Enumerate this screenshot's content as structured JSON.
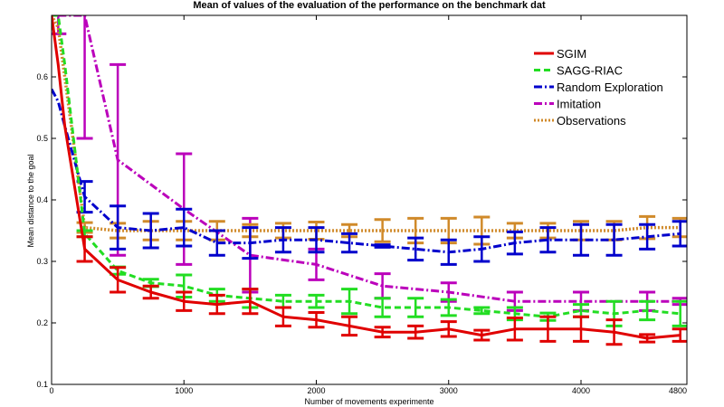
{
  "chart_data": {
    "type": "line",
    "title": "Mean of values of the evaluation of the performance on the benchmark dat",
    "xlabel": "Number of movements experimente",
    "ylabel": "Mean distance to the goal",
    "xlim": [
      0,
      4800
    ],
    "ylim": [
      0.1,
      0.7
    ],
    "xticks": [
      0,
      1000,
      2000,
      3000,
      4000,
      4800
    ],
    "xtick_labels": [
      "0",
      "1000",
      "2000",
      "3000",
      "4000",
      "4800"
    ],
    "yticks": [
      0.1,
      0.2,
      0.3,
      0.4,
      0.5,
      0.6
    ],
    "ytick_labels": [
      "0.1",
      "0.2",
      "0.3",
      "0.4",
      "0.5",
      "0.6"
    ],
    "grid": false,
    "legend_position": "top-right",
    "series": [
      {
        "name": "SGIM",
        "color": "#e00000",
        "dash": "solid",
        "x": [
          0,
          50,
          100,
          250,
          500,
          750,
          1000,
          1250,
          1500,
          1750,
          2000,
          2250,
          2500,
          2750,
          3000,
          3250,
          3500,
          3750,
          4000,
          4250,
          4500,
          4750
        ],
        "y": [
          0.7,
          0.62,
          0.52,
          0.32,
          0.27,
          0.25,
          0.235,
          0.23,
          0.235,
          0.21,
          0.205,
          0.195,
          0.185,
          0.185,
          0.19,
          0.18,
          0.19,
          0.19,
          0.19,
          0.185,
          0.175,
          0.18
        ],
        "err": [
          0,
          0,
          0,
          0.02,
          0.02,
          0.01,
          0.015,
          0.015,
          0.02,
          0.015,
          0.012,
          0.015,
          0.008,
          0.01,
          0.012,
          0.008,
          0.018,
          0.02,
          0.02,
          0.02,
          0.006,
          0.01
        ]
      },
      {
        "name": "SAGG-RIAC",
        "color": "#22dd22",
        "dash": "dashed",
        "x": [
          0,
          50,
          100,
          250,
          500,
          750,
          1000,
          1250,
          1500,
          1750,
          2000,
          2250,
          2500,
          2750,
          3000,
          3250,
          3500,
          3750,
          4000,
          4250,
          4500,
          4750
        ],
        "y": [
          0.7,
          0.7,
          0.62,
          0.345,
          0.285,
          0.265,
          0.26,
          0.245,
          0.24,
          0.235,
          0.235,
          0.235,
          0.225,
          0.225,
          0.225,
          0.22,
          0.215,
          0.21,
          0.22,
          0.215,
          0.22,
          0.215
        ],
        "err": [
          0,
          0,
          0,
          0.005,
          0.006,
          0.006,
          0.018,
          0.01,
          0.015,
          0.01,
          0.01,
          0.02,
          0.015,
          0.015,
          0.013,
          0.005,
          0.01,
          0.006,
          0.01,
          0.02,
          0.015,
          0.02
        ]
      },
      {
        "name": "Random Exploration",
        "color": "#0000cc",
        "dash": "dashdot",
        "x": [
          0,
          50,
          100,
          250,
          500,
          750,
          1000,
          1250,
          1500,
          1750,
          2000,
          2250,
          2500,
          2750,
          3000,
          3250,
          3500,
          3750,
          4000,
          4250,
          4500,
          4750
        ],
        "y": [
          0.58,
          0.56,
          0.52,
          0.405,
          0.355,
          0.35,
          0.355,
          0.33,
          0.33,
          0.335,
          0.335,
          0.33,
          0.325,
          0.32,
          0.315,
          0.32,
          0.33,
          0.335,
          0.335,
          0.335,
          0.34,
          0.345
        ],
        "err": [
          0,
          0,
          0,
          0.025,
          0.035,
          0.028,
          0.03,
          0.02,
          0.025,
          0.02,
          0.02,
          0.015,
          0.002,
          0.018,
          0.02,
          0.02,
          0.018,
          0.02,
          0.025,
          0.025,
          0.02,
          0.02
        ]
      },
      {
        "name": "Imitation",
        "color": "#bb00bb",
        "dash": "dashdot",
        "x": [
          50,
          250,
          500,
          1000,
          1500,
          2000,
          2500,
          3000,
          3500,
          4000,
          4500,
          4750
        ],
        "y": [
          0.7,
          0.7,
          0.465,
          0.385,
          0.31,
          0.295,
          0.26,
          0.25,
          0.235,
          0.235,
          0.235,
          0.235
        ],
        "err": [
          0.03,
          0.2,
          0.155,
          0.09,
          0.06,
          0.025,
          0.02,
          0.015,
          0.015,
          0.015,
          0.015,
          0.005
        ]
      },
      {
        "name": "Observations",
        "color": "#d08a2a",
        "dash": "dotted",
        "x": [
          0,
          50,
          100,
          250,
          500,
          750,
          1000,
          1250,
          1500,
          1750,
          2000,
          2250,
          2500,
          2750,
          3000,
          3250,
          3500,
          3750,
          4000,
          4250,
          4500,
          4750
        ],
        "y": [
          0.7,
          0.68,
          0.6,
          0.355,
          0.35,
          0.35,
          0.35,
          0.35,
          0.35,
          0.35,
          0.35,
          0.35,
          0.35,
          0.35,
          0.35,
          0.35,
          0.35,
          0.35,
          0.35,
          0.35,
          0.355,
          0.355
        ],
        "err": [
          0,
          0,
          0,
          0.008,
          0.012,
          0.015,
          0.015,
          0.015,
          0.01,
          0.012,
          0.014,
          0.01,
          0.018,
          0.02,
          0.02,
          0.022,
          0.012,
          0.012,
          0.015,
          0.015,
          0.018,
          0.015
        ]
      }
    ]
  }
}
